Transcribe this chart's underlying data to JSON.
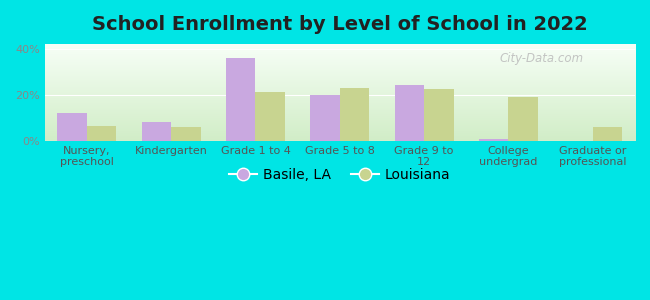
{
  "title": "School Enrollment by Level of School in 2022",
  "categories": [
    "Nursery,\npreschool",
    "Kindergarten",
    "Grade 1 to 4",
    "Grade 5 to 8",
    "Grade 9 to\n12",
    "College\nundergrad",
    "Graduate or\nprofessional"
  ],
  "basile_values": [
    12,
    8,
    36,
    20,
    24,
    1,
    0
  ],
  "louisiana_values": [
    6.5,
    6,
    21,
    23,
    22.5,
    19,
    6
  ],
  "bar_color_basile": "#c9a8e0",
  "bar_color_louisiana": "#c8d490",
  "background_outer": "#00e5e5",
  "background_inner_bottom": "#d8ecc8",
  "background_inner_top": "#f5fbf0",
  "title_fontsize": 14,
  "tick_fontsize": 8,
  "legend_fontsize": 10,
  "ylim": [
    0,
    42
  ],
  "yticks": [
    0,
    20,
    40
  ],
  "ytick_labels": [
    "0%",
    "20%",
    "40%"
  ],
  "bar_width": 0.35,
  "watermark_text": "City-Data.com"
}
